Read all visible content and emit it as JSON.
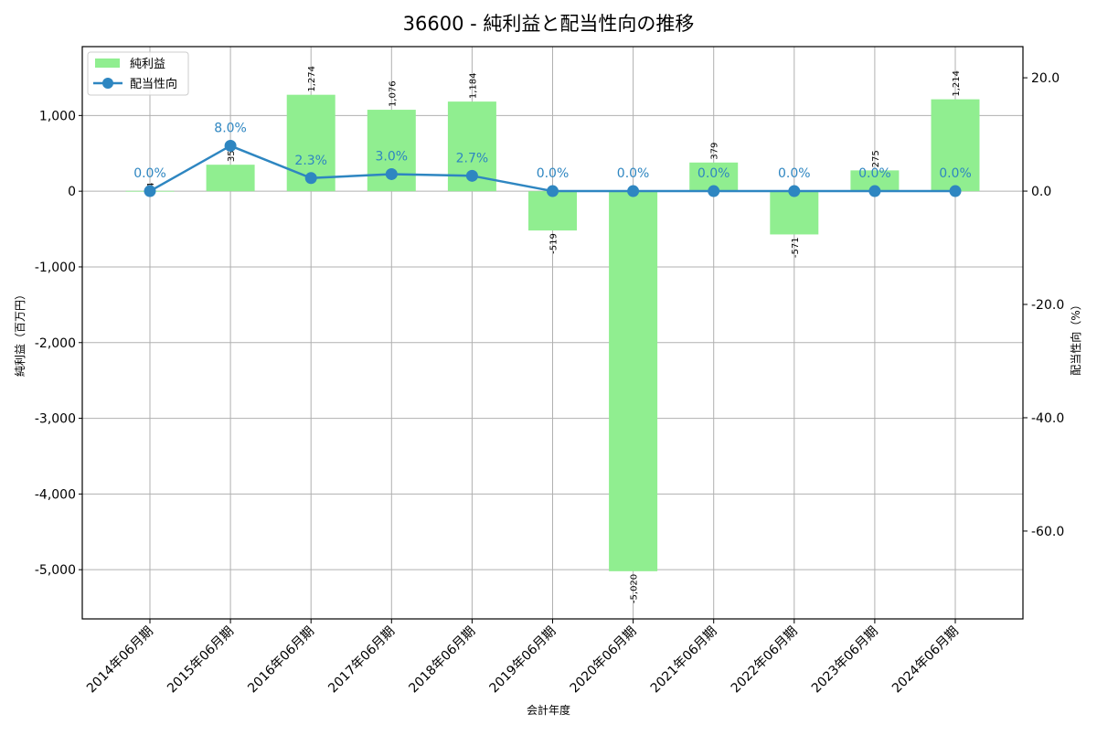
{
  "chart_data": {
    "type": "bar+line",
    "title": "36600 - 純利益と配当性向の推移",
    "xlabel": "会計年度",
    "ylabel_left": "純利益（百万円）",
    "ylabel_right": "配当性向（%）",
    "categories": [
      "2014年06月期",
      "2015年06月期",
      "2016年06月期",
      "2017年06月期",
      "2018年06月期",
      "2019年06月期",
      "2020年06月期",
      "2021年06月期",
      "2022年06月期",
      "2023年06月期",
      "2024年06月期"
    ],
    "series": [
      {
        "name": "純利益",
        "type": "bar",
        "axis": "left",
        "color": "#90ee90",
        "values": [
          4,
          350,
          1274,
          1076,
          1184,
          -519,
          -5020,
          379,
          -571,
          275,
          1214
        ],
        "labels": [
          "4",
          "350",
          "1,274",
          "1,076",
          "1,184",
          "-519",
          "-5,020",
          "379",
          "-571",
          "275",
          "1,214"
        ]
      },
      {
        "name": "配当性向",
        "type": "line",
        "axis": "right",
        "color": "#2e86c1",
        "values": [
          0.0,
          8.0,
          2.3,
          3.0,
          2.7,
          0.0,
          0.0,
          0.0,
          0.0,
          0.0,
          0.0
        ],
        "labels": [
          "0.0%",
          "8.0%",
          "2.3%",
          "3.0%",
          "2.7%",
          "0.0%",
          "0.0%",
          "0.0%",
          "0.0%",
          "0.0%",
          "0.0%"
        ]
      }
    ],
    "ylim_left": [
      -5650,
      1910
    ],
    "ylim_right": [
      -75.5,
      25.5
    ],
    "yticks_left": [
      1000,
      0,
      -1000,
      -2000,
      -3000,
      -4000,
      -5000
    ],
    "yticks_left_labels": [
      "1,000",
      "0",
      "-1,000",
      "-2,000",
      "-3,000",
      "-4,000",
      "-5,000"
    ],
    "yticks_right": [
      20,
      0,
      -20,
      -40,
      -60
    ],
    "yticks_right_labels": [
      "20.0",
      "0.0",
      "-20.0",
      "-40.0",
      "-60.0"
    ],
    "grid": true,
    "legend_position": "upper left"
  },
  "legend": {
    "items": [
      {
        "label": "純利益",
        "kind": "bar-swatch"
      },
      {
        "label": "配当性向",
        "kind": "line-marker"
      }
    ]
  }
}
